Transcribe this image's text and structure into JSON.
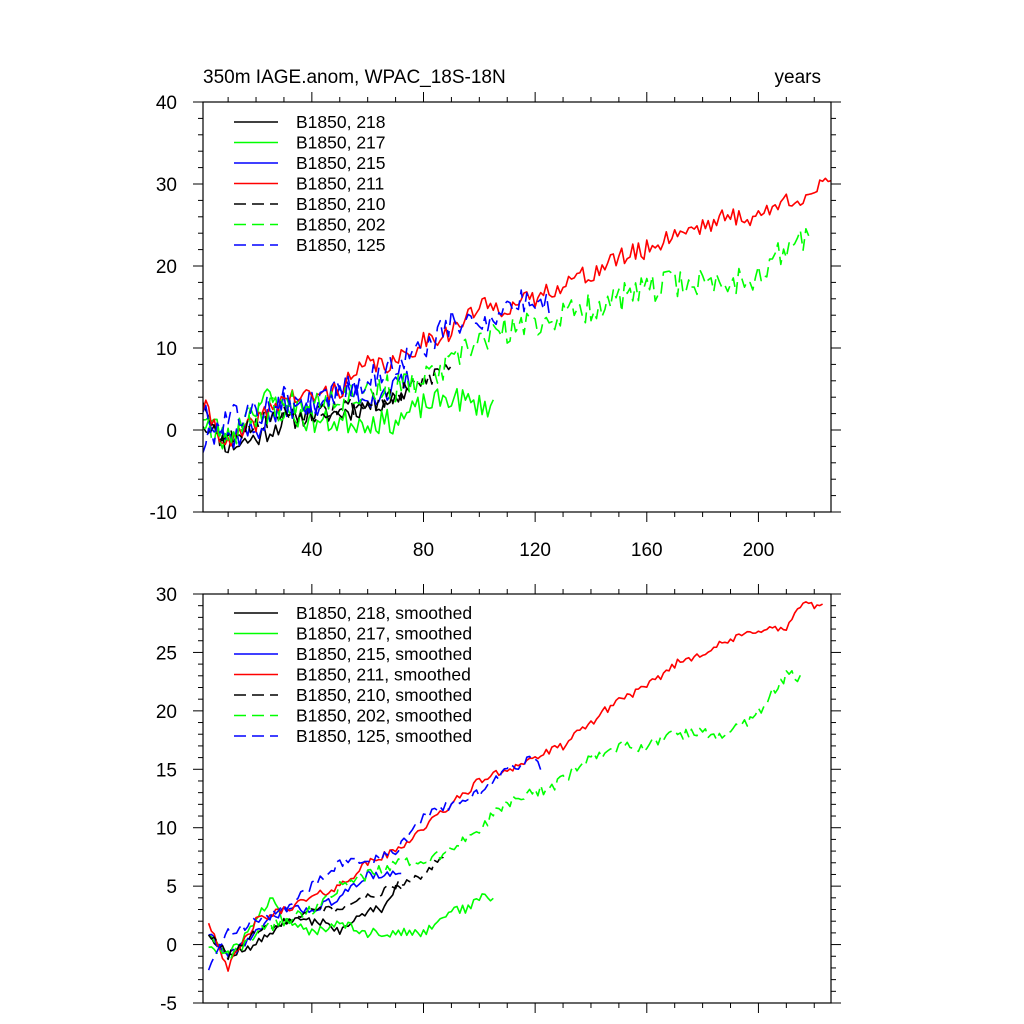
{
  "chart_data": [
    {
      "type": "line",
      "title": "350m IAGE.anom, WPAC_18S-18N",
      "right_title": "years",
      "xlabel": "",
      "ylabel": "",
      "xlim": [
        1,
        226
      ],
      "ylim": [
        -10,
        40
      ],
      "xticks": [
        40,
        80,
        120,
        160,
        200
      ],
      "xtick_labels": [
        "40",
        "80",
        "120",
        "160",
        "200"
      ],
      "yticks": [
        -10,
        0,
        10,
        20,
        30,
        40
      ],
      "ytick_labels": [
        "-10",
        "0",
        "10",
        "20",
        "30",
        "40"
      ],
      "grid": false,
      "legend_position": "top-left",
      "series": [
        {
          "name": "B1850, 218",
          "color": "#000000",
          "dash": "solid",
          "x_start": 1,
          "x_end": 75,
          "anchors": [
            [
              1,
              4
            ],
            [
              5,
              0
            ],
            [
              10,
              -2
            ],
            [
              20,
              -1
            ],
            [
              30,
              1
            ],
            [
              40,
              2
            ],
            [
              50,
              2
            ],
            [
              60,
              3
            ],
            [
              70,
              4
            ],
            [
              75,
              5
            ]
          ],
          "noise": 1.3,
          "seed": 11
        },
        {
          "name": "B1850, 217",
          "color": "#00ff00",
          "dash": "solid",
          "x_start": 1,
          "x_end": 105,
          "anchors": [
            [
              1,
              2
            ],
            [
              10,
              -1
            ],
            [
              20,
              3
            ],
            [
              25,
              4
            ],
            [
              30,
              2
            ],
            [
              40,
              1
            ],
            [
              50,
              1
            ],
            [
              60,
              1
            ],
            [
              70,
              1
            ],
            [
              80,
              3
            ],
            [
              90,
              4
            ],
            [
              100,
              3
            ],
            [
              105,
              3
            ]
          ],
          "noise": 1.5,
          "seed": 23
        },
        {
          "name": "B1850, 215",
          "color": "#0000ff",
          "dash": "solid",
          "x_start": 1,
          "x_end": 75,
          "anchors": [
            [
              1,
              3
            ],
            [
              10,
              -1
            ],
            [
              20,
              0
            ],
            [
              30,
              3
            ],
            [
              40,
              3
            ],
            [
              50,
              5
            ],
            [
              60,
              4
            ],
            [
              70,
              5
            ],
            [
              75,
              6
            ]
          ],
          "noise": 1.6,
          "seed": 37
        },
        {
          "name": "B1850, 211",
          "color": "#ff0000",
          "dash": "solid",
          "x_start": 1,
          "x_end": 226,
          "anchors": [
            [
              1,
              3
            ],
            [
              10,
              -2
            ],
            [
              20,
              1
            ],
            [
              30,
              4
            ],
            [
              40,
              4
            ],
            [
              50,
              5
            ],
            [
              60,
              8
            ],
            [
              70,
              8
            ],
            [
              80,
              11
            ],
            [
              90,
              12
            ],
            [
              100,
              15
            ],
            [
              110,
              15
            ],
            [
              120,
              16
            ],
            [
              130,
              18
            ],
            [
              140,
              19
            ],
            [
              150,
              21
            ],
            [
              160,
              22
            ],
            [
              170,
              24
            ],
            [
              180,
              25
            ],
            [
              190,
              26
            ],
            [
              200,
              26
            ],
            [
              210,
              28
            ],
            [
              220,
              29
            ],
            [
              226,
              30
            ]
          ],
          "noise": 1.2,
          "seed": 41
        },
        {
          "name": "B1850, 210",
          "color": "#000000",
          "dash": "dashed",
          "x_start": 1,
          "x_end": 90,
          "anchors": [
            [
              1,
              1
            ],
            [
              10,
              -1
            ],
            [
              20,
              1
            ],
            [
              30,
              2
            ],
            [
              40,
              2
            ],
            [
              50,
              3
            ],
            [
              60,
              3
            ],
            [
              70,
              4
            ],
            [
              80,
              6
            ],
            [
              90,
              8
            ]
          ],
          "noise": 1.2,
          "seed": 53
        },
        {
          "name": "B1850, 202",
          "color": "#00ff00",
          "dash": "dashed",
          "x_start": 1,
          "x_end": 218,
          "anchors": [
            [
              1,
              1
            ],
            [
              10,
              -1
            ],
            [
              20,
              2
            ],
            [
              30,
              3
            ],
            [
              40,
              4
            ],
            [
              50,
              4
            ],
            [
              60,
              5
            ],
            [
              70,
              5
            ],
            [
              80,
              6
            ],
            [
              90,
              8
            ],
            [
              100,
              11
            ],
            [
              110,
              12
            ],
            [
              120,
              13
            ],
            [
              130,
              14
            ],
            [
              140,
              15
            ],
            [
              150,
              16
            ],
            [
              160,
              17
            ],
            [
              170,
              18
            ],
            [
              180,
              18
            ],
            [
              190,
              18
            ],
            [
              200,
              19
            ],
            [
              210,
              22
            ],
            [
              218,
              24
            ]
          ],
          "noise": 1.8,
          "seed": 67
        },
        {
          "name": "B1850, 125",
          "color": "#0000ff",
          "dash": "dashed",
          "x_start": 1,
          "x_end": 125,
          "anchors": [
            [
              1,
              -2
            ],
            [
              10,
              2
            ],
            [
              20,
              2
            ],
            [
              30,
              4
            ],
            [
              40,
              3
            ],
            [
              50,
              5
            ],
            [
              60,
              6
            ],
            [
              70,
              8
            ],
            [
              80,
              10
            ],
            [
              90,
              13
            ],
            [
              100,
              13
            ],
            [
              110,
              15
            ],
            [
              120,
              16
            ],
            [
              125,
              15
            ]
          ],
          "noise": 1.6,
          "seed": 79
        }
      ]
    },
    {
      "type": "line",
      "title": "",
      "xlabel": "",
      "ylabel": "",
      "xlim": [
        1,
        226
      ],
      "ylim": [
        -5,
        30
      ],
      "xticks": [
        40,
        80,
        120,
        160,
        200
      ],
      "xtick_labels": [],
      "yticks": [
        -5,
        0,
        5,
        10,
        15,
        20,
        25,
        30
      ],
      "ytick_labels": [
        "-5",
        "0",
        "5",
        "10",
        "15",
        "20",
        "25",
        "30"
      ],
      "grid": false,
      "legend_position": "top-left",
      "series": [
        {
          "name": "B1850, 218, smoothed",
          "color": "#000000",
          "dash": "solid",
          "x_start": 3,
          "x_end": 72,
          "anchors": [
            [
              3,
              1
            ],
            [
              10,
              -1
            ],
            [
              20,
              0
            ],
            [
              30,
              2
            ],
            [
              40,
              2
            ],
            [
              45,
              2
            ],
            [
              50,
              1
            ],
            [
              55,
              2
            ],
            [
              60,
              3
            ],
            [
              65,
              3
            ],
            [
              70,
              5
            ],
            [
              72,
              5
            ]
          ],
          "noise": 0.35,
          "seed": 12
        },
        {
          "name": "B1850, 217, smoothed",
          "color": "#00ff00",
          "dash": "solid",
          "x_start": 3,
          "x_end": 105,
          "anchors": [
            [
              3,
              1
            ],
            [
              10,
              -1
            ],
            [
              20,
              2
            ],
            [
              25,
              4
            ],
            [
              30,
              2
            ],
            [
              40,
              1
            ],
            [
              50,
              2
            ],
            [
              60,
              1
            ],
            [
              70,
              1
            ],
            [
              80,
              1
            ],
            [
              90,
              3
            ],
            [
              95,
              3
            ],
            [
              100,
              4
            ],
            [
              105,
              4
            ]
          ],
          "noise": 0.4,
          "seed": 24
        },
        {
          "name": "B1850, 215, smoothed",
          "color": "#0000ff",
          "dash": "solid",
          "x_start": 3,
          "x_end": 72,
          "anchors": [
            [
              3,
              1
            ],
            [
              10,
              -1
            ],
            [
              20,
              1
            ],
            [
              30,
              3
            ],
            [
              40,
              3
            ],
            [
              50,
              4
            ],
            [
              60,
              6
            ],
            [
              70,
              6
            ],
            [
              72,
              6
            ]
          ],
          "noise": 0.35,
          "seed": 38
        },
        {
          "name": "B1850, 211, smoothed",
          "color": "#ff0000",
          "dash": "solid",
          "x_start": 3,
          "x_end": 223,
          "anchors": [
            [
              3,
              2
            ],
            [
              10,
              -2
            ],
            [
              20,
              2
            ],
            [
              30,
              3
            ],
            [
              40,
              4
            ],
            [
              50,
              5
            ],
            [
              60,
              7
            ],
            [
              70,
              8
            ],
            [
              80,
              10
            ],
            [
              90,
              12
            ],
            [
              100,
              14
            ],
            [
              110,
              15
            ],
            [
              120,
              16
            ],
            [
              130,
              17
            ],
            [
              140,
              19
            ],
            [
              150,
              21
            ],
            [
              160,
              22
            ],
            [
              170,
              24
            ],
            [
              180,
              25
            ],
            [
              190,
              26
            ],
            [
              200,
              27
            ],
            [
              210,
              27
            ],
            [
              215,
              29
            ],
            [
              223,
              29
            ]
          ],
          "noise": 0.35,
          "seed": 42
        },
        {
          "name": "B1850, 210, smoothed",
          "color": "#000000",
          "dash": "dashed",
          "x_start": 3,
          "x_end": 88,
          "anchors": [
            [
              3,
              1
            ],
            [
              10,
              -1
            ],
            [
              20,
              1
            ],
            [
              30,
              2
            ],
            [
              40,
              3
            ],
            [
              50,
              3
            ],
            [
              60,
              4
            ],
            [
              70,
              5
            ],
            [
              80,
              6
            ],
            [
              88,
              8
            ]
          ],
          "noise": 0.35,
          "seed": 54
        },
        {
          "name": "B1850, 202, smoothed",
          "color": "#00ff00",
          "dash": "dashed",
          "x_start": 3,
          "x_end": 215,
          "anchors": [
            [
              3,
              0
            ],
            [
              10,
              -1
            ],
            [
              20,
              1
            ],
            [
              30,
              2
            ],
            [
              40,
              3
            ],
            [
              50,
              5
            ],
            [
              60,
              6
            ],
            [
              70,
              7
            ],
            [
              80,
              7
            ],
            [
              90,
              8
            ],
            [
              100,
              10
            ],
            [
              110,
              12
            ],
            [
              120,
              13
            ],
            [
              130,
              14
            ],
            [
              140,
              16
            ],
            [
              150,
              17
            ],
            [
              160,
              17
            ],
            [
              170,
              18
            ],
            [
              180,
              18
            ],
            [
              190,
              18
            ],
            [
              200,
              20
            ],
            [
              210,
              23
            ],
            [
              215,
              23
            ]
          ],
          "noise": 0.5,
          "seed": 68
        },
        {
          "name": "B1850, 125, smoothed",
          "color": "#0000ff",
          "dash": "dashed",
          "x_start": 3,
          "x_end": 122,
          "anchors": [
            [
              3,
              -2
            ],
            [
              10,
              1
            ],
            [
              20,
              2
            ],
            [
              30,
              3
            ],
            [
              40,
              5
            ],
            [
              50,
              7
            ],
            [
              60,
              7
            ],
            [
              70,
              8
            ],
            [
              80,
              11
            ],
            [
              90,
              12
            ],
            [
              100,
              13
            ],
            [
              110,
              15
            ],
            [
              120,
              16
            ],
            [
              122,
              15
            ]
          ],
          "noise": 0.4,
          "seed": 80
        }
      ]
    }
  ]
}
